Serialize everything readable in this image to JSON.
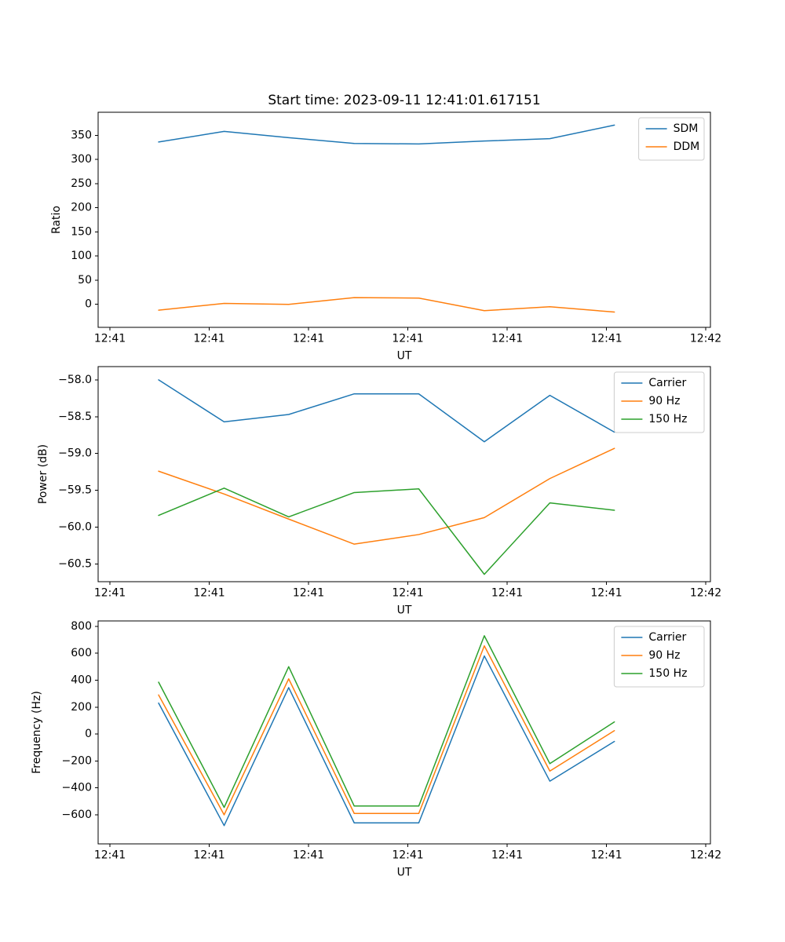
{
  "figure": {
    "title": "Start time: 2023-09-11 12:41:01.617151"
  },
  "palette": {
    "blue": "#1f77b4",
    "orange": "#ff7f0e",
    "green": "#2ca02c",
    "spine": "#000000",
    "text": "#000000",
    "legend_border": "#cccccc",
    "background": "#ffffff"
  },
  "chart_data": [
    {
      "type": "line",
      "name": "ratio",
      "title": "Start time: 2023-09-11 12:41:01.617151",
      "xlabel": "UT",
      "ylabel": "Ratio",
      "grid": false,
      "legend_loc": "upper right",
      "x": [
        4.9,
        11.5,
        18.0,
        24.6,
        31.1,
        37.7,
        44.3,
        50.8
      ],
      "xlim": [
        -1.19,
        60.47
      ],
      "x_tick_values": [
        0,
        10,
        20,
        30,
        40,
        50,
        60
      ],
      "x_tick_labels": [
        "12:41",
        "12:41",
        "12:41",
        "12:41",
        "12:41",
        "12:41",
        "12:42"
      ],
      "ylim": [
        -47.6,
        397.6
      ],
      "y_tick_values": [
        0,
        50,
        100,
        150,
        200,
        250,
        300,
        350
      ],
      "y_tick_labels": [
        "0",
        "50",
        "100",
        "150",
        "200",
        "250",
        "300",
        "350"
      ],
      "series": [
        {
          "name": "SDM",
          "color": "#1f77b4",
          "values": [
            336,
            358,
            345,
            333,
            332,
            338,
            343,
            371
          ]
        },
        {
          "name": "DDM",
          "color": "#ff7f0e",
          "values": [
            -12,
            2,
            0,
            14,
            13,
            -13,
            -5,
            -16
          ]
        }
      ]
    },
    {
      "type": "line",
      "name": "power",
      "xlabel": "UT",
      "ylabel": "Power (dB)",
      "grid": false,
      "legend_loc": "upper right",
      "x": [
        4.9,
        11.5,
        18.0,
        24.6,
        31.1,
        37.7,
        44.3,
        50.8
      ],
      "xlim": [
        -1.19,
        60.47
      ],
      "x_tick_values": [
        0,
        10,
        20,
        30,
        40,
        50,
        60
      ],
      "x_tick_labels": [
        "12:41",
        "12:41",
        "12:41",
        "12:41",
        "12:41",
        "12:41",
        "12:42"
      ],
      "ylim": [
        -60.74,
        -57.82
      ],
      "y_tick_values": [
        -60.5,
        -60.0,
        -59.5,
        -59.0,
        -58.5,
        -58.0
      ],
      "y_tick_labels": [
        "−60.5",
        "−60.0",
        "−59.5",
        "−59.0",
        "−58.5",
        "−58.0"
      ],
      "series": [
        {
          "name": "Carrier",
          "color": "#1f77b4",
          "values": [
            -58.0,
            -58.57,
            -58.47,
            -58.19,
            -58.19,
            -58.84,
            -58.21,
            -58.71
          ]
        },
        {
          "name": "90 Hz",
          "color": "#ff7f0e",
          "values": [
            -59.24,
            -59.55,
            -59.89,
            -60.23,
            -60.1,
            -59.87,
            -59.34,
            -58.93
          ]
        },
        {
          "name": "150 Hz",
          "color": "#2ca02c",
          "values": [
            -59.84,
            -59.47,
            -59.86,
            -59.53,
            -59.48,
            -60.64,
            -59.67,
            -59.77
          ]
        }
      ]
    },
    {
      "type": "line",
      "name": "frequency",
      "xlabel": "UT",
      "ylabel": "Frequency (Hz)",
      "grid": false,
      "legend_loc": "upper right",
      "x": [
        4.9,
        11.5,
        18.0,
        24.6,
        31.1,
        37.7,
        44.3,
        50.8
      ],
      "xlim": [
        -1.19,
        60.47
      ],
      "x_tick_values": [
        0,
        10,
        20,
        30,
        40,
        50,
        60
      ],
      "x_tick_labels": [
        "12:41",
        "12:41",
        "12:41",
        "12:41",
        "12:41",
        "12:41",
        "12:42"
      ],
      "ylim": [
        -816,
        840
      ],
      "y_tick_values": [
        -600,
        -400,
        -200,
        0,
        200,
        400,
        600,
        800
      ],
      "y_tick_labels": [
        "−600",
        "−400",
        "−200",
        "0",
        "200",
        "400",
        "600",
        "800"
      ],
      "series": [
        {
          "name": "Carrier",
          "color": "#1f77b4",
          "values": [
            230,
            -680,
            345,
            -660,
            -660,
            580,
            -350,
            -55
          ]
        },
        {
          "name": "90 Hz",
          "color": "#ff7f0e",
          "values": [
            290,
            -600,
            410,
            -590,
            -590,
            655,
            -275,
            25
          ]
        },
        {
          "name": "150 Hz",
          "color": "#2ca02c",
          "values": [
            385,
            -545,
            500,
            -535,
            -535,
            730,
            -220,
            90
          ]
        }
      ]
    }
  ]
}
